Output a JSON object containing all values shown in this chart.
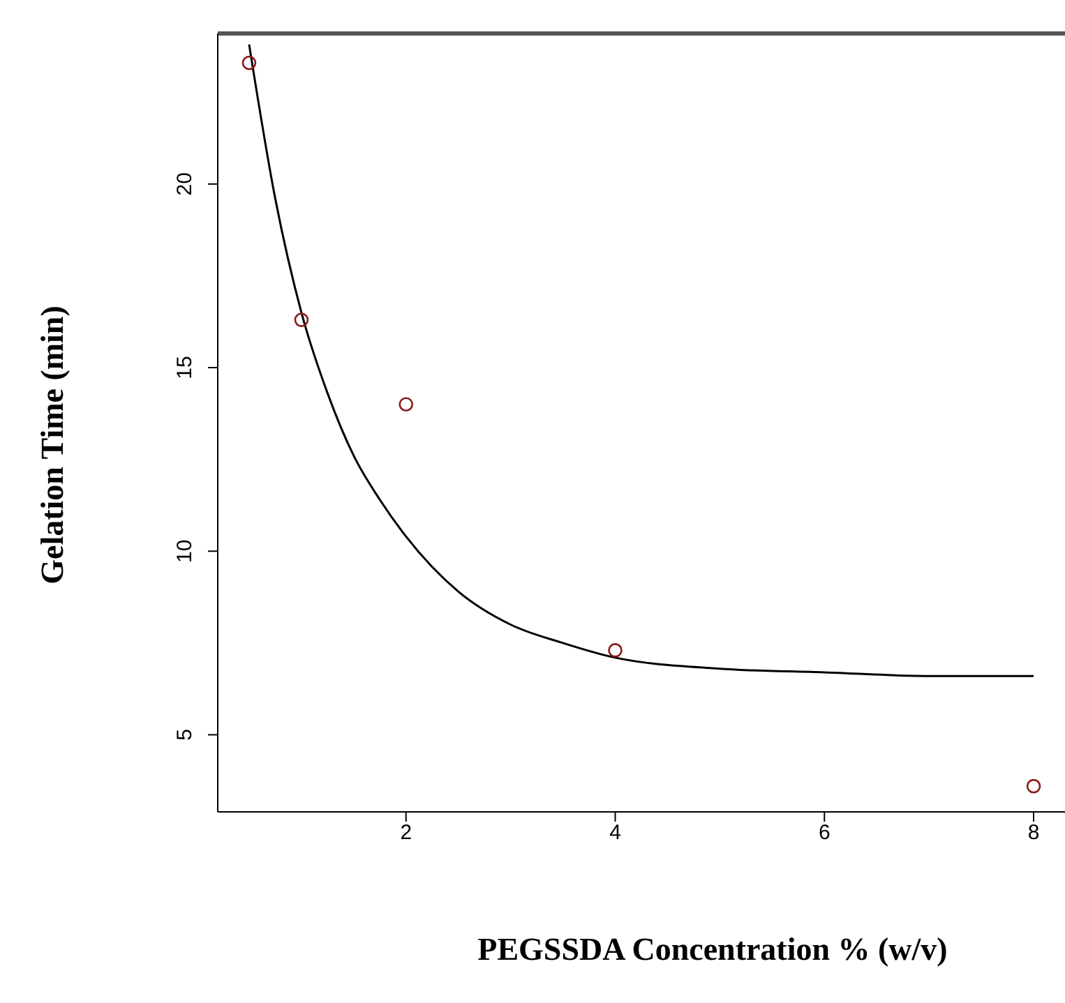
{
  "chart_data": {
    "type": "scatter",
    "xlabel": "PEGSSDA Concentration % (w/v)",
    "ylabel": "Gelation Time (min)",
    "xlim": [
      0.2,
      8.3
    ],
    "ylim": [
      2.9,
      24.1
    ],
    "xticks": [
      2,
      4,
      6,
      8
    ],
    "yticks": [
      5,
      10,
      15,
      20
    ],
    "grid": false,
    "legend": false,
    "marker": "circle",
    "series": [
      {
        "color": "#8b1a1a",
        "x": [
          0.5,
          1,
          2,
          4,
          8
        ],
        "values": [
          23.3,
          16.3,
          14.0,
          7.3,
          3.6
        ]
      },
      {
        "type": "line",
        "color": "#000000",
        "marker": "none",
        "line_style": "solid",
        "x": [
          0.5,
          0.75,
          1,
          1.25,
          1.5,
          1.75,
          2,
          2.5,
          3,
          3.5,
          4,
          5,
          6,
          7,
          8
        ],
        "values": [
          23.8,
          19.6,
          16.5,
          14.3,
          12.6,
          11.4,
          10.4,
          8.9,
          8.0,
          7.5,
          7.1,
          6.8,
          6.7,
          6.6,
          6.6
        ]
      }
    ]
  }
}
